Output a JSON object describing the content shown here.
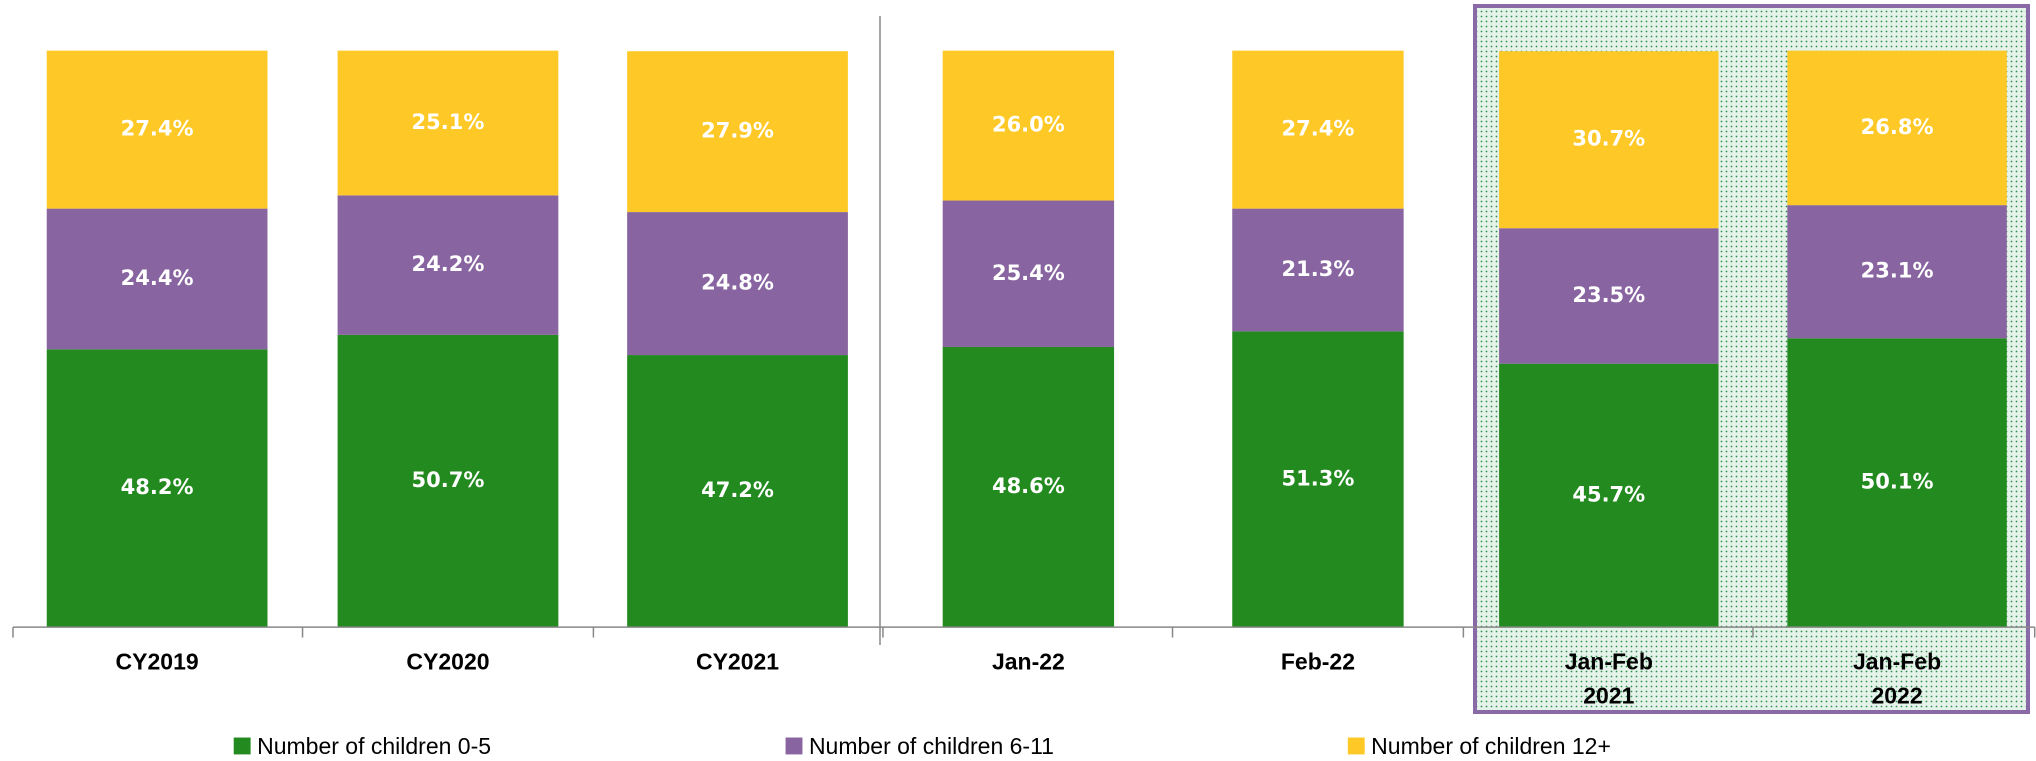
{
  "chart_data": {
    "type": "stacked_bar",
    "categories": [
      "CY2019",
      "CY2020",
      "CY2021",
      "Jan-22",
      "Feb-22",
      "Jan-Feb 2021",
      "Jan-Feb 2022"
    ],
    "ylim": [
      0,
      100
    ],
    "series": [
      {
        "name": "Number of children 0-5",
        "color": "#238a1f",
        "values": [
          48.2,
          50.7,
          47.2,
          48.6,
          51.3,
          45.7,
          50.1
        ],
        "value_labels": [
          "48.2%",
          "50.7%",
          "47.2%",
          "48.6%",
          "51.3%",
          "45.7%",
          "50.1%"
        ]
      },
      {
        "name": "Number of children 6-11",
        "color": "#8864a0",
        "values": [
          24.4,
          24.2,
          24.8,
          25.4,
          21.3,
          23.5,
          23.1
        ],
        "value_labels": [
          "24.4%",
          "24.2%",
          "24.8%",
          "25.4%",
          "21.3%",
          "23.5%",
          "23.1%"
        ]
      },
      {
        "name": "Number of children 12+",
        "color": "#fec926",
        "values": [
          27.4,
          25.1,
          27.9,
          26.0,
          27.4,
          30.7,
          26.8
        ],
        "value_labels": [
          "27.4%",
          "25.1%",
          "27.9%",
          "26.0%",
          "27.4%",
          "30.7%",
          "26.8%"
        ]
      }
    ]
  }
}
